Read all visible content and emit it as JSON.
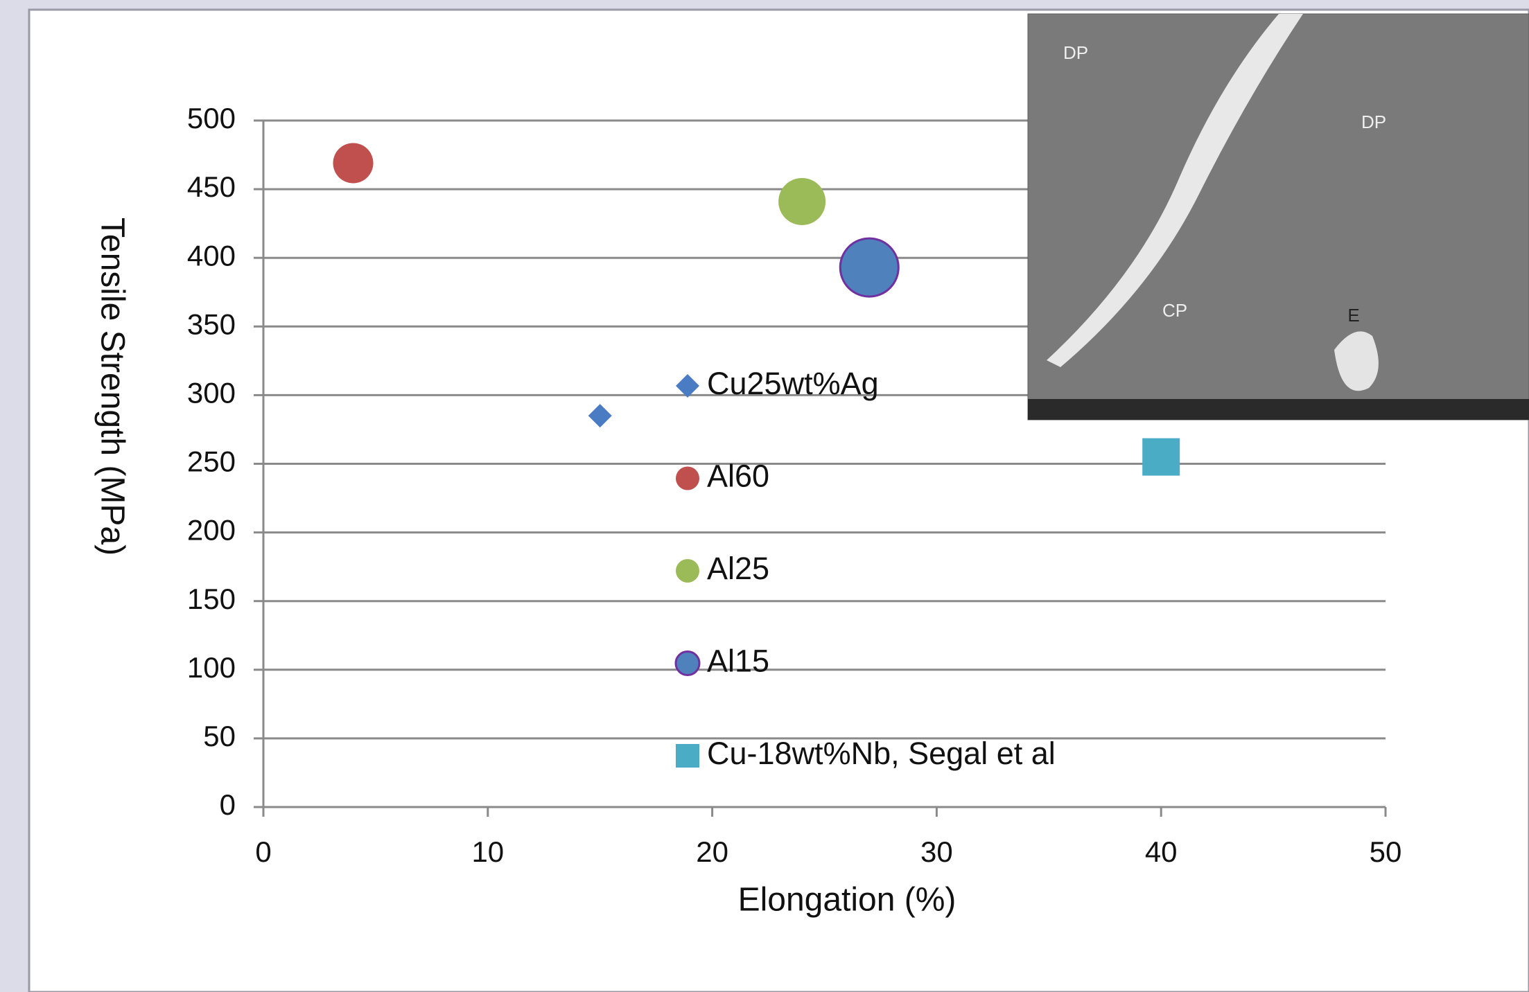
{
  "chart_data": {
    "type": "scatter",
    "x_label": "Elongation (%)",
    "y_label": "Tensile Strength (MPa)",
    "xlim": [
      0,
      50
    ],
    "xticks": [
      0,
      10,
      20,
      30,
      40,
      50
    ],
    "ylim": [
      0,
      500
    ],
    "yticks": [
      0,
      50,
      100,
      150,
      200,
      250,
      300,
      350,
      400,
      450,
      500
    ],
    "grid": true,
    "series": [
      {
        "name": "Cu25wt%Ag",
        "color": "#4a7cc4",
        "marker": "diamond",
        "x": [
          15
        ],
        "values": [
          285
        ]
      },
      {
        "name": "Al60",
        "color": "#c0504d",
        "marker": "circle",
        "x": [
          4
        ],
        "values": [
          469
        ]
      },
      {
        "name": "Al25",
        "color": "#9bbb59",
        "marker": "circle",
        "x": [
          24
        ],
        "values": [
          441
        ]
      },
      {
        "name": "Al15",
        "color": "#4f81bd",
        "edge_color": "#7030a0",
        "marker": "circle",
        "x": [
          27
        ],
        "values": [
          393
        ]
      },
      {
        "name": "Cu-18wt%Nb, Segal et al",
        "color": "#4bacc6",
        "marker": "square",
        "x": [
          40
        ],
        "values": [
          255
        ]
      }
    ],
    "inset_labels": [
      "DP",
      "DP",
      "CP",
      "E"
    ]
  }
}
